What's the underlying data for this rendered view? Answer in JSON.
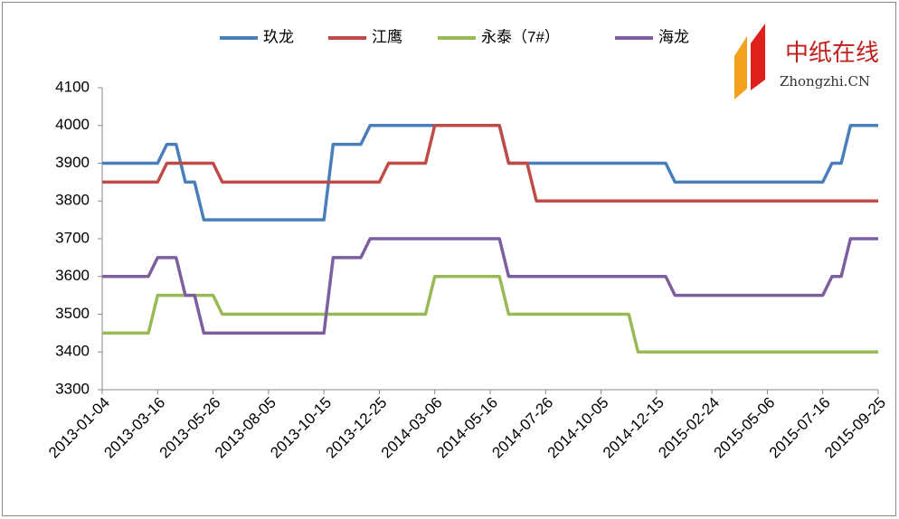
{
  "chart_data": {
    "type": "line",
    "watermark": {
      "title": "中纸在线",
      "subtitle": "Zhongzhi.CN"
    },
    "categories": [
      "2013-01-04",
      null,
      null,
      null,
      null,
      null,
      "2013-03-16",
      null,
      null,
      null,
      null,
      null,
      "2013-05-26",
      null,
      null,
      null,
      null,
      null,
      "2013-08-05",
      null,
      null,
      null,
      null,
      null,
      "2013-10-15",
      null,
      null,
      null,
      null,
      null,
      "2013-12-25",
      null,
      null,
      null,
      null,
      null,
      "2014-03-06",
      null,
      null,
      null,
      null,
      null,
      "2014-05-16",
      null,
      null,
      null,
      null,
      null,
      "2014-07-26",
      null,
      null,
      null,
      null,
      null,
      "2014-10-05",
      null,
      null,
      null,
      null,
      null,
      "2014-12-15",
      null,
      null,
      null,
      null,
      null,
      "2015-02-24",
      null,
      null,
      null,
      null,
      null,
      "2015-05-06",
      null,
      null,
      null,
      null,
      null,
      "2015-07-16",
      null,
      null,
      null,
      null,
      null,
      "2015-09-25"
    ],
    "series": [
      {
        "name": "玖龙",
        "color": "#4a7ebb",
        "values": [
          3900,
          3900,
          3900,
          3900,
          3900,
          3900,
          3900,
          3950,
          3950,
          3850,
          3850,
          3750,
          3750,
          3750,
          3750,
          3750,
          3750,
          3750,
          3750,
          3750,
          3750,
          3750,
          3750,
          3750,
          3750,
          3950,
          3950,
          3950,
          3950,
          4000,
          4000,
          4000,
          4000,
          4000,
          4000,
          4000,
          4000,
          4000,
          4000,
          4000,
          4000,
          4000,
          4000,
          4000,
          3900,
          3900,
          3900,
          3900,
          3900,
          3900,
          3900,
          3900,
          3900,
          3900,
          3900,
          3900,
          3900,
          3900,
          3900,
          3900,
          3900,
          3900,
          3850,
          3850,
          3850,
          3850,
          3850,
          3850,
          3850,
          3850,
          3850,
          3850,
          3850,
          3850,
          3850,
          3850,
          3850,
          3850,
          3850,
          3900,
          3900,
          4000,
          4000,
          4000,
          4000
        ]
      },
      {
        "name": "江鹰",
        "color": "#be4b48",
        "values": [
          3850,
          3850,
          3850,
          3850,
          3850,
          3850,
          3850,
          3900,
          3900,
          3900,
          3900,
          3900,
          3900,
          3850,
          3850,
          3850,
          3850,
          3850,
          3850,
          3850,
          3850,
          3850,
          3850,
          3850,
          3850,
          3850,
          3850,
          3850,
          3850,
          3850,
          3850,
          3900,
          3900,
          3900,
          3900,
          3900,
          4000,
          4000,
          4000,
          4000,
          4000,
          4000,
          4000,
          4000,
          3900,
          3900,
          3900,
          3800,
          3800,
          3800,
          3800,
          3800,
          3800,
          3800,
          3800,
          3800,
          3800,
          3800,
          3800,
          3800,
          3800,
          3800,
          3800,
          3800,
          3800,
          3800,
          3800,
          3800,
          3800,
          3800,
          3800,
          3800,
          3800,
          3800,
          3800,
          3800,
          3800,
          3800,
          3800,
          3800,
          3800,
          3800,
          3800,
          3800,
          3800
        ]
      },
      {
        "name": "永泰（7#）",
        "color": "#98b954",
        "values": [
          3450,
          3450,
          3450,
          3450,
          3450,
          3450,
          3550,
          3550,
          3550,
          3550,
          3550,
          3550,
          3550,
          3500,
          3500,
          3500,
          3500,
          3500,
          3500,
          3500,
          3500,
          3500,
          3500,
          3500,
          3500,
          3500,
          3500,
          3500,
          3500,
          3500,
          3500,
          3500,
          3500,
          3500,
          3500,
          3500,
          3600,
          3600,
          3600,
          3600,
          3600,
          3600,
          3600,
          3600,
          3500,
          3500,
          3500,
          3500,
          3500,
          3500,
          3500,
          3500,
          3500,
          3500,
          3500,
          3500,
          3500,
          3500,
          3400,
          3400,
          3400,
          3400,
          3400,
          3400,
          3400,
          3400,
          3400,
          3400,
          3400,
          3400,
          3400,
          3400,
          3400,
          3400,
          3400,
          3400,
          3400,
          3400,
          3400,
          3400,
          3400,
          3400,
          3400,
          3400,
          3400
        ]
      },
      {
        "name": "海龙",
        "color": "#7d5fa0",
        "values": [
          3600,
          3600,
          3600,
          3600,
          3600,
          3600,
          3650,
          3650,
          3650,
          3550,
          3550,
          3450,
          3450,
          3450,
          3450,
          3450,
          3450,
          3450,
          3450,
          3450,
          3450,
          3450,
          3450,
          3450,
          3450,
          3650,
          3650,
          3650,
          3650,
          3700,
          3700,
          3700,
          3700,
          3700,
          3700,
          3700,
          3700,
          3700,
          3700,
          3700,
          3700,
          3700,
          3700,
          3700,
          3600,
          3600,
          3600,
          3600,
          3600,
          3600,
          3600,
          3600,
          3600,
          3600,
          3600,
          3600,
          3600,
          3600,
          3600,
          3600,
          3600,
          3600,
          3550,
          3550,
          3550,
          3550,
          3550,
          3550,
          3550,
          3550,
          3550,
          3550,
          3550,
          3550,
          3550,
          3550,
          3550,
          3550,
          3550,
          3600,
          3600,
          3700,
          3700,
          3700,
          3700
        ]
      }
    ],
    "ylim": [
      3300,
      4100
    ],
    "yticks": [
      3300,
      3400,
      3500,
      3600,
      3700,
      3800,
      3900,
      4000,
      4100
    ],
    "grid": false,
    "legend": "top"
  }
}
